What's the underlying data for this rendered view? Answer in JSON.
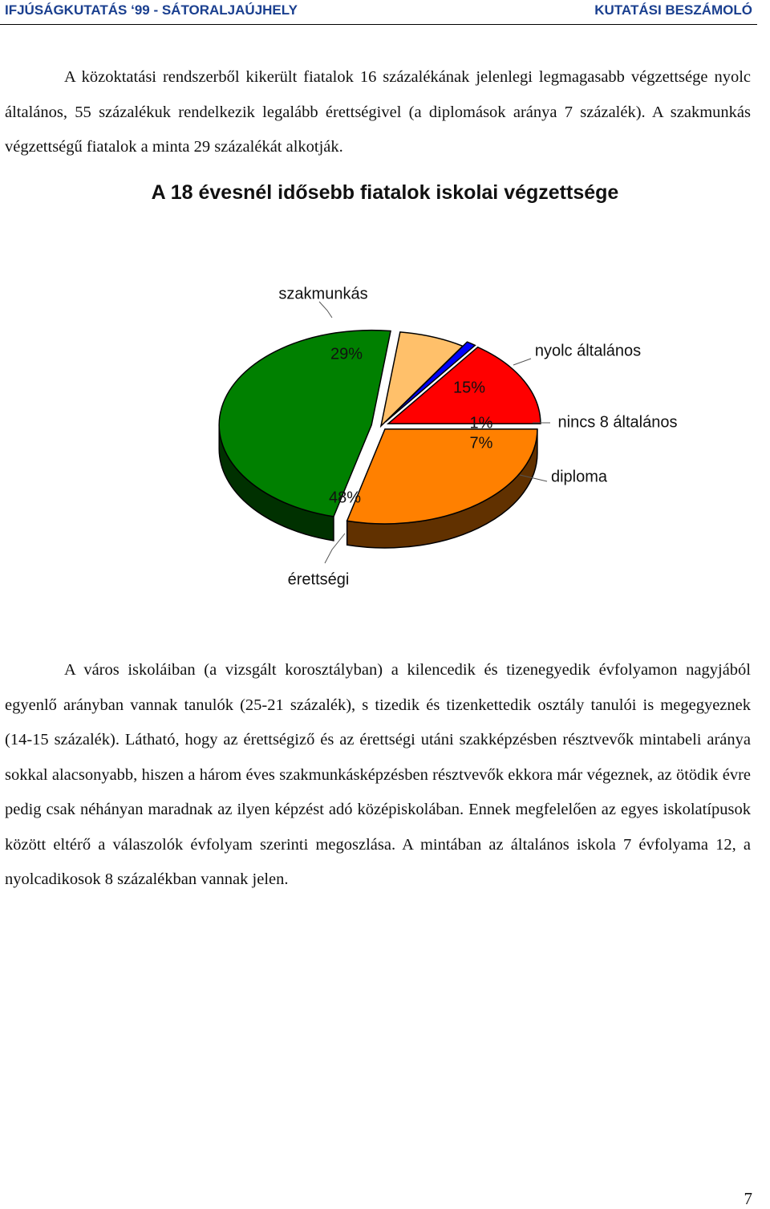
{
  "header": {
    "left": "IFJÚSÁGKUTATÁS ‘99 - SÁTORALJAÚJHELY",
    "right": "KUTATÁSI BESZÁMOLÓ",
    "color": "#1a3f8f"
  },
  "paragraphs": [
    "A közoktatási rendszerből kikerült fiatalok 16 százalékának jelenlegi legmagasabb végzettsége nyolc általános, 55 százalékuk rendelkezik legalább érettségivel (a diplomások aránya 7 százalék). A szakmunkás végzettségű fiatalok a minta 29 százalékát alkotják.",
    "A város iskoláiban (a vizsgált korosztályban) a kilencedik és tizenegyedik évfolyamon nagyjából egyenlő arányban vannak tanulók (25-21 százalék), s tizedik és tizenkettedik osztály tanulói is megegyeznek (14-15 százalék). Látható, hogy az érettségiző és az érettségi utáni szakképzésben résztvevők mintabeli aránya sokkal alacsonyabb, hiszen a három éves szakmunkásképzésben résztvevők ekkora már végeznek, az ötödik évre pedig csak néhányan maradnak az ilyen képzést adó középiskolában. Ennek megfelelően az egyes iskolatípusok között eltérő a válaszolók évfolyam szerinti megoszlása. A mintában az általános iskola 7 évfolyama 12, a nyolcadikosok 8 százalékban vannak jelen."
  ],
  "chart_data": {
    "type": "pie",
    "style": "3d-exploded",
    "title": "A 18 évesnél idősebb fiatalok iskolai végzettsége",
    "series": [
      {
        "category": "nyolc általános",
        "value": 15,
        "label": "15%",
        "color": "#ff0000"
      },
      {
        "category": "nincs 8 általános",
        "value": 1,
        "label": "1%",
        "color": "#0000ff"
      },
      {
        "category": "diploma",
        "value": 7,
        "label": "7%",
        "color": "#ffc06a"
      },
      {
        "category": "érettségi",
        "value": 48,
        "label": "48%",
        "color": "#008000"
      },
      {
        "category": "szakmunkás",
        "value": 29,
        "label": "29%",
        "color": "#ff8000"
      }
    ]
  },
  "page_number": "7"
}
